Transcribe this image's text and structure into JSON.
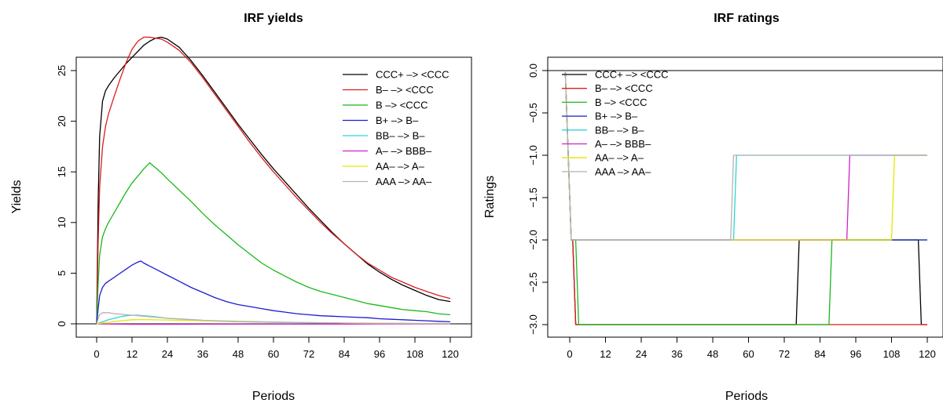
{
  "chart_data": [
    {
      "type": "line",
      "title": "IRF yields",
      "xlabel": "Periods",
      "ylabel": "Yields",
      "xlim": [
        0,
        120
      ],
      "ylim": [
        0,
        28.5
      ],
      "x_ticks": [
        0,
        12,
        24,
        36,
        48,
        60,
        72,
        84,
        96,
        108,
        120
      ],
      "y_ticks": [
        0,
        5,
        10,
        15,
        20,
        25
      ],
      "grid": false,
      "legend_position": "top-right",
      "legend_bordered": false,
      "hline": 0,
      "series": [
        {
          "name": "CCC+ –> <CCC",
          "color": "#000000",
          "x": [
            0,
            0.5,
            1,
            2,
            3,
            4,
            6,
            8,
            10,
            12,
            14,
            16,
            18,
            20,
            22,
            24,
            28,
            32,
            36,
            40,
            44,
            48,
            52,
            56,
            60,
            64,
            68,
            72,
            76,
            80,
            84,
            88,
            92,
            96,
            100,
            104,
            108,
            112,
            116,
            120
          ],
          "y": [
            0,
            12,
            18.5,
            22,
            23,
            23.5,
            24.3,
            25,
            25.7,
            26.3,
            26.9,
            27.5,
            27.9,
            28.2,
            28.3,
            28.1,
            27.3,
            26.0,
            24.5,
            22.9,
            21.3,
            19.7,
            18.2,
            16.7,
            15.3,
            14.0,
            12.7,
            11.4,
            10.2,
            9.0,
            7.9,
            6.9,
            5.9,
            5.1,
            4.4,
            3.8,
            3.3,
            2.8,
            2.4,
            2.2
          ]
        },
        {
          "name": "B– –> <CCC",
          "color": "#dd1c1c",
          "x": [
            0,
            0.5,
            1,
            2,
            3,
            4,
            6,
            8,
            10,
            12,
            14,
            16,
            18,
            20,
            22,
            24,
            28,
            32,
            36,
            40,
            44,
            48,
            52,
            56,
            60,
            64,
            68,
            72,
            76,
            80,
            84,
            88,
            92,
            96,
            100,
            104,
            108,
            112,
            116,
            120
          ],
          "y": [
            0,
            8,
            13.5,
            17.5,
            19.5,
            20.7,
            22.5,
            24.2,
            25.8,
            27.1,
            27.9,
            28.3,
            28.3,
            28.2,
            28.1,
            27.8,
            27.0,
            25.8,
            24.3,
            22.7,
            21.1,
            19.5,
            17.9,
            16.4,
            15.0,
            13.7,
            12.4,
            11.2,
            10.0,
            8.9,
            7.9,
            6.9,
            6.0,
            5.3,
            4.6,
            4.1,
            3.6,
            3.2,
            2.8,
            2.5
          ]
        },
        {
          "name": "B –> <CCC",
          "color": "#1bb81b",
          "x": [
            0,
            0.5,
            1,
            2,
            3,
            4,
            6,
            8,
            10,
            12,
            14,
            16,
            17,
            18,
            20,
            22,
            24,
            28,
            32,
            36,
            40,
            44,
            48,
            52,
            56,
            60,
            64,
            68,
            72,
            76,
            80,
            84,
            88,
            92,
            96,
            100,
            104,
            108,
            112,
            116,
            120
          ],
          "y": [
            0,
            4,
            6.8,
            8.6,
            9.4,
            10,
            11,
            12,
            13,
            13.9,
            14.6,
            15.3,
            15.6,
            15.9,
            15.4,
            14.9,
            14.3,
            13.2,
            12.1,
            10.9,
            9.8,
            8.8,
            7.8,
            6.9,
            6.0,
            5.3,
            4.7,
            4.1,
            3.6,
            3.2,
            2.9,
            2.6,
            2.3,
            2.0,
            1.8,
            1.6,
            1.4,
            1.3,
            1.2,
            1.0,
            0.9
          ]
        },
        {
          "name": "B+ –> B–",
          "color": "#1c1cd0",
          "x": [
            0,
            0.5,
            1,
            2,
            3,
            4,
            6,
            8,
            10,
            12,
            14,
            15,
            16,
            18,
            20,
            24,
            28,
            32,
            36,
            40,
            44,
            48,
            52,
            56,
            60,
            64,
            68,
            72,
            76,
            80,
            84,
            88,
            92,
            96,
            100,
            104,
            108,
            112,
            116,
            120
          ],
          "y": [
            0,
            1.5,
            2.8,
            3.6,
            4.0,
            4.2,
            4.6,
            5.0,
            5.4,
            5.8,
            6.1,
            6.2,
            6.0,
            5.7,
            5.4,
            4.8,
            4.2,
            3.6,
            3.1,
            2.6,
            2.2,
            1.9,
            1.7,
            1.5,
            1.3,
            1.15,
            1.0,
            0.9,
            0.8,
            0.75,
            0.7,
            0.65,
            0.6,
            0.5,
            0.45,
            0.4,
            0.35,
            0.3,
            0.25,
            0.2
          ]
        },
        {
          "name": "BB– –> B–",
          "color": "#2fd4d4",
          "x": [
            0,
            2,
            4,
            6,
            8,
            10,
            12,
            14,
            16,
            20,
            24,
            30,
            36,
            42,
            48,
            60,
            72,
            84,
            96,
            108,
            120
          ],
          "y": [
            0,
            0.2,
            0.4,
            0.55,
            0.7,
            0.8,
            0.85,
            0.85,
            0.8,
            0.7,
            0.55,
            0.45,
            0.35,
            0.25,
            0.2,
            0.15,
            0.1,
            0.07,
            0.05,
            0.03,
            0.02
          ]
        },
        {
          "name": "A– –> BBB–",
          "color": "#cc22cc",
          "x": [
            0,
            6,
            12,
            24,
            36,
            48,
            60,
            72,
            84,
            96,
            108,
            120
          ],
          "y": [
            0,
            -0.03,
            -0.05,
            -0.05,
            -0.04,
            -0.03,
            -0.03,
            -0.02,
            -0.02,
            -0.01,
            -0.01,
            -0.01
          ]
        },
        {
          "name": "AA– –> A–",
          "color": "#e6e600",
          "x": [
            0,
            4,
            8,
            12,
            16,
            24,
            36,
            48,
            60,
            72,
            84,
            96,
            108,
            120
          ],
          "y": [
            0,
            0.15,
            0.3,
            0.4,
            0.42,
            0.38,
            0.3,
            0.22,
            0.16,
            0.12,
            0.08,
            0.06,
            0.04,
            0.03
          ]
        },
        {
          "name": "AAA –> AA–",
          "color": "#b4b4b4",
          "x": [
            0,
            0.5,
            1,
            2,
            4,
            6,
            8,
            10,
            12,
            16,
            20,
            24,
            30,
            36,
            48,
            60,
            72,
            84,
            96,
            108,
            120
          ],
          "y": [
            0,
            0.5,
            0.9,
            1.1,
            1.1,
            1.0,
            0.95,
            0.9,
            0.85,
            0.75,
            0.65,
            0.55,
            0.45,
            0.35,
            0.25,
            0.18,
            0.12,
            0.08,
            0.05,
            0.04,
            0.03
          ]
        }
      ]
    },
    {
      "type": "line",
      "title": "IRF ratings",
      "xlabel": "Periods",
      "ylabel": "Ratings",
      "xlim": [
        0,
        120
      ],
      "ylim": [
        -3.05,
        0.1
      ],
      "x_ticks": [
        0,
        12,
        24,
        36,
        48,
        60,
        72,
        84,
        96,
        108,
        120
      ],
      "y_ticks": [
        0.0,
        -0.5,
        -1.0,
        -1.5,
        -2.0,
        -2.5,
        -3.0
      ],
      "y_tick_labels": [
        "0.0",
        "−0.5",
        "−1.0",
        "−1.5",
        "−2.0",
        "−2.5",
        "−3.0"
      ],
      "grid": false,
      "legend_position": "top-left",
      "legend_bordered": false,
      "hline": 0,
      "series": [
        {
          "name": "CCC+ –> <CCC",
          "color": "#000000",
          "x": [
            -1.5,
            0,
            0.5,
            1,
            2,
            3,
            76,
            77,
            117,
            118,
            120
          ],
          "y": [
            0,
            -1.5,
            -2,
            -2,
            -3,
            -3,
            -3,
            -2,
            -2,
            -3,
            -3
          ]
        },
        {
          "name": "B– –> <CCC",
          "color": "#dd1c1c",
          "x": [
            -1.5,
            0,
            0.5,
            1,
            2,
            120
          ],
          "y": [
            0,
            -1.5,
            -2,
            -2,
            -3,
            -3
          ]
        },
        {
          "name": "B –> <CCC",
          "color": "#1bb81b",
          "x": [
            -1.5,
            0,
            0.5,
            1,
            2,
            3,
            87,
            88,
            120
          ],
          "y": [
            0,
            -1.5,
            -2,
            -2,
            -2,
            -3,
            -3,
            -2,
            -2
          ]
        },
        {
          "name": "B+ –> B–",
          "color": "#1c1cd0",
          "x": [
            -1.5,
            0,
            0.5,
            1,
            120
          ],
          "y": [
            0,
            -1.5,
            -2,
            -2,
            -2
          ]
        },
        {
          "name": "BB– –> B–",
          "color": "#2fd4d4",
          "x": [
            -1.5,
            0,
            0.5,
            1,
            55,
            56,
            120
          ],
          "y": [
            0,
            -1.5,
            -2,
            -2,
            -2,
            -1,
            -1
          ]
        },
        {
          "name": "A– –> BBB–",
          "color": "#cc22cc",
          "x": [
            -1.5,
            0,
            0.5,
            1,
            93,
            94,
            120
          ],
          "y": [
            0,
            -1.5,
            -2,
            -2,
            -2,
            -1,
            -1
          ]
        },
        {
          "name": "AA– –> A–",
          "color": "#e6e600",
          "x": [
            -1.5,
            0,
            0.5,
            1,
            108,
            109,
            120
          ],
          "y": [
            0,
            -1.5,
            -2,
            -2,
            -2,
            -1,
            -1
          ]
        },
        {
          "name": "AAA –> AA–",
          "color": "#b4b4b4",
          "x": [
            -1.5,
            0,
            0.5,
            1,
            54,
            55,
            120
          ],
          "y": [
            0,
            -1.5,
            -2,
            -2,
            -2,
            -1,
            -1
          ]
        }
      ]
    }
  ]
}
